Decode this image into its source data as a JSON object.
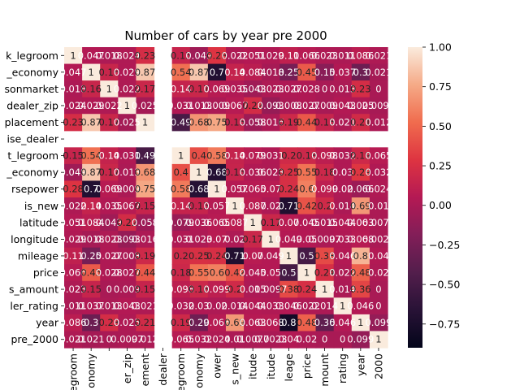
{
  "chart_data": {
    "type": "heatmap",
    "title": "Number of cars by year pre 2000",
    "xlabel": "",
    "ylabel": "",
    "row_labels": [
      "k_legroom",
      "_economy",
      "sonmarket",
      "dealer_zip",
      "placement",
      "ise_dealer",
      "t_legroom",
      "_economy",
      "rsepower",
      "is_new",
      "latitude",
      "longitude",
      "mileage",
      "price",
      "s_amount",
      "ler_rating",
      "year",
      "pre_2000"
    ],
    "col_labels": [
      "legroom",
      "onomy",
      "",
      "er_zip",
      "ement",
      "dealer",
      "egroom",
      "onomy",
      "ower",
      "s_new",
      "itude",
      "itude",
      "leage",
      "price",
      "mount",
      "rating",
      "year",
      "2000"
    ],
    "values": [
      [
        1.0,
        0.047,
        0.018,
        0.024,
        0.23,
        null,
        0.15,
        0.049,
        0.28,
        0.022,
        0.051,
        0.029,
        0.11,
        0.066,
        0.023,
        0.011,
        0.086,
        0.021
      ],
      [
        0.047,
        1.0,
        0.16,
        0.029,
        0.87,
        null,
        0.54,
        0.87,
        0.7,
        0.14,
        0.084,
        0.018,
        0.25,
        0.45,
        0.15,
        0.037,
        0.3,
        0.021
      ],
      [
        0.018,
        0.16,
        1.0,
        0.022,
        0.17,
        null,
        0.14,
        0.17,
        0.069,
        0.035,
        0.043,
        0.023,
        0.027,
        0.028,
        0.0,
        0.013,
        0.23,
        0.0
      ],
      [
        0.024,
        0.029,
        0.022,
        1.0,
        0.025,
        null,
        0.031,
        0.013,
        0.009,
        0.067,
        0.22,
        0.093,
        0.008,
        0.027,
        0.009,
        0.043,
        0.025,
        0.0097
      ],
      [
        0.23,
        0.87,
        0.17,
        0.025,
        1.0,
        null,
        0.49,
        0.68,
        0.75,
        0.15,
        0.058,
        0.016,
        0.19,
        0.44,
        0.15,
        0.021,
        0.21,
        0.012
      ],
      [
        null,
        null,
        null,
        null,
        null,
        null,
        null,
        null,
        null,
        null,
        null,
        null,
        null,
        null,
        null,
        null,
        null,
        null
      ],
      [
        0.15,
        0.54,
        0.14,
        0.031,
        0.49,
        null,
        1.0,
        0.4,
        0.58,
        0.14,
        0.079,
        0.031,
        0.2,
        0.18,
        0.098,
        0.032,
        0.19,
        0.065
      ],
      [
        0.049,
        0.87,
        0.17,
        0.013,
        0.68,
        null,
        0.4,
        1.0,
        0.68,
        0.15,
        0.036,
        0.023,
        0.25,
        0.55,
        0.18,
        0.03,
        0.29,
        0.032
      ],
      [
        0.28,
        0.7,
        0.069,
        0.009,
        0.75,
        null,
        0.58,
        0.68,
        1.0,
        0.057,
        0.065,
        0.07,
        0.24,
        0.6,
        0.099,
        0.02,
        0.066,
        0.024
      ],
      [
        0.022,
        0.14,
        0.035,
        0.067,
        0.15,
        null,
        0.14,
        0.15,
        0.057,
        1.0,
        0.087,
        0.02,
        0.71,
        0.42,
        0.2,
        0.014,
        0.69,
        0.01
      ],
      [
        0.051,
        0.084,
        0.043,
        0.22,
        0.058,
        null,
        0.079,
        0.036,
        0.065,
        0.087,
        1.0,
        0.17,
        0.07,
        0.045,
        0.015,
        0.044,
        0.063,
        0.0077
      ],
      [
        0.029,
        0.018,
        0.023,
        0.093,
        0.016,
        null,
        0.031,
        0.023,
        0.07,
        0.02,
        0.17,
        1.0,
        0.049,
        0.05,
        0.0097,
        0.033,
        0.068,
        0.0023
      ],
      [
        0.11,
        0.25,
        0.027,
        0.008,
        0.19,
        null,
        0.2,
        0.25,
        0.24,
        0.71,
        0.07,
        0.049,
        1.0,
        0.5,
        0.38,
        0.046,
        0.8,
        0.04
      ],
      [
        0.066,
        0.45,
        0.028,
        0.027,
        0.44,
        null,
        0.18,
        0.55,
        0.6,
        0.42,
        0.045,
        0.05,
        0.5,
        1.0,
        0.24,
        0.022,
        0.48,
        0.02
      ],
      [
        0.023,
        0.15,
        0.0,
        0.009,
        0.15,
        null,
        0.098,
        0.18,
        0.099,
        0.2,
        0.015,
        0.0097,
        0.38,
        0.24,
        1.0,
        0.014,
        0.36,
        0.0
      ],
      [
        0.011,
        0.037,
        0.013,
        0.043,
        0.021,
        null,
        0.032,
        0.03,
        0.02,
        0.014,
        0.044,
        0.033,
        0.046,
        0.022,
        0.014,
        1.0,
        0.046,
        0.0
      ],
      [
        0.086,
        0.3,
        0.23,
        0.025,
        0.21,
        null,
        0.19,
        0.29,
        0.066,
        0.69,
        0.063,
        0.068,
        0.8,
        0.48,
        0.36,
        0.046,
        1.0,
        0.099
      ],
      [
        0.021,
        0.021,
        0.0,
        0.0097,
        0.012,
        null,
        0.065,
        0.032,
        0.024,
        0.01,
        0.0077,
        0.0023,
        0.04,
        0.02,
        0.0,
        0.0,
        0.099,
        1.0
      ]
    ],
    "signs": [
      [
        1,
        1,
        1,
        1,
        1,
        0,
        1,
        -1,
        1,
        1,
        1,
        1,
        1,
        1,
        1,
        1,
        1,
        1
      ],
      [
        1,
        1,
        1,
        1,
        1,
        0,
        1,
        1,
        -1,
        1,
        1,
        -1,
        -1,
        1,
        -1,
        1,
        -1,
        -1
      ],
      [
        1,
        1,
        1,
        1,
        1,
        0,
        1,
        1,
        1,
        1,
        -1,
        1,
        1,
        1,
        1,
        1,
        1,
        1
      ],
      [
        1,
        1,
        1,
        1,
        -1,
        0,
        1,
        1,
        1,
        1,
        1,
        -1,
        1,
        1,
        -1,
        1,
        1,
        -1
      ],
      [
        1,
        1,
        1,
        -1,
        1,
        0,
        -1,
        1,
        1,
        1,
        -1,
        1,
        1,
        1,
        1,
        1,
        1,
        1
      ],
      [
        0,
        0,
        0,
        0,
        0,
        0,
        0,
        0,
        0,
        0,
        0,
        0,
        0,
        0,
        0,
        0,
        0,
        0
      ],
      [
        1,
        1,
        1,
        1,
        -1,
        0,
        1,
        1,
        1,
        1,
        1,
        1,
        1,
        1,
        1,
        1,
        1,
        1
      ],
      [
        -1,
        1,
        1,
        1,
        1,
        0,
        1,
        1,
        -1,
        1,
        1,
        1,
        1,
        1,
        1,
        1,
        1,
        1
      ],
      [
        1,
        -1,
        1,
        1,
        1,
        0,
        1,
        -1,
        1,
        1,
        1,
        1,
        1,
        1,
        1,
        1,
        -1,
        1
      ],
      [
        1,
        1,
        1,
        1,
        1,
        0,
        1,
        1,
        1,
        1,
        1,
        1,
        -1,
        1,
        1,
        1,
        1,
        1
      ],
      [
        1,
        1,
        -1,
        1,
        -1,
        0,
        -1,
        1,
        1,
        1,
        1,
        1,
        1,
        1,
        1,
        1,
        1,
        1
      ],
      [
        1,
        -1,
        1,
        -1,
        1,
        0,
        1,
        1,
        1,
        1,
        1,
        1,
        1,
        1,
        1,
        1,
        1,
        1
      ],
      [
        1,
        -1,
        1,
        1,
        1,
        0,
        1,
        1,
        1,
        -1,
        1,
        1,
        1,
        -1,
        1,
        1,
        1,
        1
      ],
      [
        1,
        1,
        1,
        1,
        1,
        0,
        1,
        1,
        1,
        1,
        1,
        1,
        -1,
        1,
        1,
        1,
        1,
        1
      ],
      [
        1,
        1,
        1,
        1,
        1,
        0,
        1,
        1,
        1,
        1,
        1,
        1,
        1,
        1,
        1,
        1,
        1,
        1
      ],
      [
        1,
        1,
        1,
        1,
        1,
        0,
        1,
        1,
        1,
        1,
        1,
        1,
        1,
        1,
        1,
        1,
        1,
        1
      ],
      [
        1,
        -1,
        1,
        1,
        1,
        0,
        1,
        -1,
        1,
        1,
        1,
        1,
        -1,
        1,
        -1,
        1,
        1,
        -1
      ],
      [
        1,
        -1,
        1,
        1,
        1,
        0,
        1,
        1,
        1,
        1,
        1,
        1,
        1,
        1,
        1,
        1,
        -1,
        1
      ]
    ],
    "cell_texts": [
      [
        "1",
        "0.047",
        "0.018",
        "0.024",
        "0.23",
        "",
        "0.15",
        "0.049",
        "0.28",
        "0.022",
        "0.051",
        "0.029",
        "0.11",
        "0.066",
        "0.023",
        "0.011",
        "0.086",
        "0.021"
      ],
      [
        "0.047",
        "1",
        "0.16",
        "0.029",
        "0.87",
        "",
        "0.54",
        "0.87",
        "0.7",
        "0.14",
        "0.084",
        "0.018",
        "0.25",
        "0.45",
        "0.15",
        "0.037",
        "0.3",
        "0.021"
      ],
      [
        "0.018",
        "0.16",
        "1",
        "0.022",
        "0.17",
        "",
        "0.14",
        "0.17",
        "0.069",
        "0.035",
        "0.043",
        "0.023",
        "0.027",
        "0.028",
        "0",
        "0.013",
        "0.23",
        "0"
      ],
      [
        "0.024",
        "0.029",
        "0.022",
        "1",
        "0.025",
        "",
        "0.031",
        "0.013",
        "0.009",
        "0.067",
        "0.22",
        "0.093",
        "0.008",
        "0.027",
        "0.009",
        "0.043",
        "0.025",
        "0.0097"
      ],
      [
        "0.23",
        "0.87",
        "0.17",
        "0.025",
        "1",
        "",
        "0.49",
        "0.68",
        "0.75",
        "0.15",
        "0.058",
        "0.016",
        "0.19",
        "0.44",
        "0.15",
        "0.021",
        "0.21",
        "0.012"
      ],
      [
        "",
        "",
        "",
        "",
        "",
        "",
        "",
        "",
        "",
        "",
        "",
        "",
        "",
        "",
        "",
        "",
        "",
        ""
      ],
      [
        "0.15",
        "0.54",
        "0.14",
        "0.031",
        "0.49",
        "",
        "1",
        "0.4",
        "0.58",
        "0.14",
        "0.079",
        "0.031",
        "0.2",
        "0.18",
        "0.098",
        "0.032",
        "0.19",
        "0.065"
      ],
      [
        "0.049",
        "0.87",
        "0.17",
        "0.013",
        "0.68",
        "",
        "0.4",
        "1",
        "0.68",
        "0.15",
        "0.036",
        "0.023",
        "0.25",
        "0.55",
        "0.18",
        "0.03",
        "0.29",
        "0.032"
      ],
      [
        "0.28",
        "0.7",
        "0.069",
        "0.009",
        "0.75",
        "",
        "0.58",
        "0.68",
        "1",
        "0.057",
        "0.065",
        "0.07",
        "0.24",
        "0.6",
        "0.099",
        "0.02",
        "0.066",
        "0.024"
      ],
      [
        "0.022",
        "0.14",
        "0.035",
        "0.067",
        "0.15",
        "",
        "0.14",
        "0.15",
        "0.057",
        "1",
        "0.087",
        "0.02",
        "0.71",
        "0.42",
        "0.2",
        "0.014",
        "0.69",
        "0.01"
      ],
      [
        "0.051",
        "0.084",
        "0.043",
        "0.22",
        "0.058",
        "",
        "0.079",
        "0.036",
        "0.065",
        "0.087",
        "1",
        "0.17",
        "0.07",
        "0.045",
        "0.015",
        "0.044",
        "0.063",
        "0.0077"
      ],
      [
        "0.029",
        "0.018",
        "0.023",
        "0.093",
        "0.016",
        "",
        "0.031",
        "0.023",
        "0.07",
        "0.02",
        "0.17",
        "1",
        "0.049",
        "0.05",
        "0.0097",
        "0.033",
        "0.068",
        "0.0023"
      ],
      [
        "0.11",
        "0.25",
        "0.027",
        "0.008",
        "0.19",
        "",
        "0.2",
        "0.25",
        "0.24",
        "0.71",
        "0.07",
        "0.049",
        "1",
        "0.5",
        "0.38",
        "0.046",
        "0.8",
        "0.04"
      ],
      [
        "0.066",
        "0.45",
        "0.028",
        "0.027",
        "0.44",
        "",
        "0.18",
        "0.55",
        "0.6",
        "0.42",
        "0.045",
        "0.05",
        "0.5",
        "1",
        "0.24",
        "0.022",
        "0.48",
        "0.02"
      ],
      [
        "0.023",
        "0.15",
        "0",
        "0.009",
        "0.15",
        "",
        "0.098",
        "0.18",
        "0.099",
        "0.2",
        "0.015",
        "0.0097",
        "0.38",
        "0.24",
        "1",
        "0.014",
        "0.36",
        "0"
      ],
      [
        "0.011",
        "0.037",
        "0.013",
        "0.043",
        "0.021",
        "",
        "0.032",
        "0.03",
        "0.02",
        "0.014",
        "0.044",
        "0.033",
        "0.046",
        "0.022",
        "0.014",
        "1",
        "0.046",
        "0"
      ],
      [
        "0.086",
        "0.3",
        "0.23",
        "0.025",
        "0.21",
        "",
        "0.19",
        "0.29",
        "0.066",
        "0.69",
        "0.063",
        "0.068",
        "0.8",
        "0.48",
        "0.36",
        "0.046",
        "1",
        "0.099"
      ],
      [
        "0.021",
        "0.021",
        "0",
        "0.0097",
        "0.012",
        "",
        "0.065",
        "0.032",
        "0.024",
        "0.01",
        "0.0077",
        "0.0023",
        "0.04",
        "0.02",
        "0",
        "0",
        "0.099",
        "1"
      ]
    ],
    "colorbar": {
      "ticks": [
        1.0,
        0.75,
        0.5,
        0.25,
        0.0,
        -0.25,
        -0.5,
        -0.75
      ],
      "tick_labels": [
        "1.00",
        "0.75",
        "0.50",
        "0.25",
        "0.00",
        "−0.25",
        "−0.50",
        "−0.75"
      ],
      "range": [
        -0.9,
        1.0
      ]
    },
    "colormap": "rocket",
    "grid": false,
    "legend": "colorbar-right"
  }
}
